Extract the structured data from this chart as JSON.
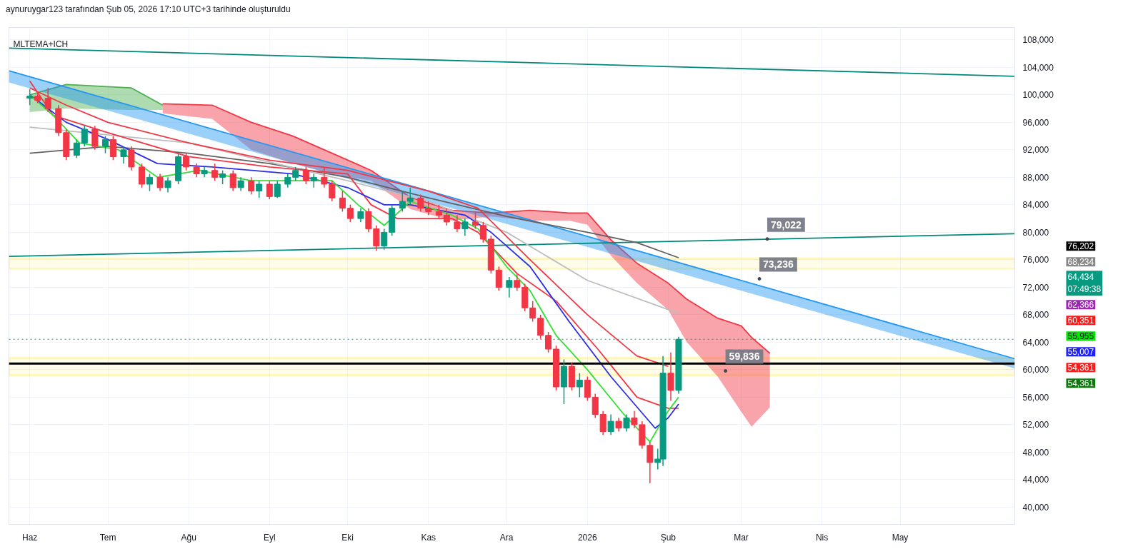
{
  "chart_data": {
    "type": "candlestick",
    "title": "aynuruygar123 tarafından Şub 05, 2026 17:10 UTC+3 tarihinde oluşturuldu",
    "subtitle": "MLTEMA+ICH",
    "x": [
      "2025-06-01",
      "2025-06-04",
      "2025-06-08",
      "2025-06-12",
      "2025-06-15",
      "2025-06-19",
      "2025-06-22",
      "2025-06-26",
      "2025-06-30",
      "2025-07-03",
      "2025-07-07",
      "2025-07-10",
      "2025-07-14",
      "2025-07-17",
      "2025-07-21",
      "2025-07-24",
      "2025-07-28",
      "2025-07-31",
      "2025-08-04",
      "2025-08-07",
      "2025-08-11",
      "2025-08-14",
      "2025-08-18",
      "2025-08-21",
      "2025-08-25",
      "2025-08-28",
      "2025-09-01",
      "2025-09-04",
      "2025-09-08",
      "2025-09-11",
      "2025-09-15",
      "2025-09-18",
      "2025-09-22",
      "2025-09-25",
      "2025-09-29",
      "2025-10-02",
      "2025-10-06",
      "2025-10-09",
      "2025-10-12",
      "2025-10-15",
      "2025-10-18",
      "2025-10-22",
      "2025-10-25",
      "2025-10-29",
      "2025-11-01",
      "2025-11-05",
      "2025-11-08",
      "2025-11-12",
      "2025-11-15",
      "2025-11-19",
      "2025-11-22",
      "2025-11-25",
      "2025-11-28",
      "2025-12-02",
      "2025-12-05",
      "2025-12-08",
      "2025-12-11",
      "2025-12-14",
      "2025-12-17",
      "2025-12-20",
      "2025-12-23",
      "2025-12-26",
      "2025-12-29",
      "2026-01-01",
      "2026-01-04",
      "2026-01-07",
      "2026-01-10",
      "2026-01-13",
      "2026-01-16",
      "2026-01-19",
      "2026-01-22",
      "2026-01-25",
      "2026-01-28",
      "2026-01-30",
      "2026-02-02",
      "2026-02-05"
    ],
    "ohlc": [
      [
        99500,
        100800,
        98500,
        99800
      ],
      [
        99800,
        100500,
        98800,
        99200
      ],
      [
        99500,
        101000,
        97500,
        98000
      ],
      [
        98000,
        98500,
        94000,
        94500
      ],
      [
        94500,
        95000,
        90500,
        91000
      ],
      [
        91200,
        93500,
        90800,
        93000
      ],
      [
        93000,
        95500,
        92500,
        95000
      ],
      [
        95000,
        95500,
        92000,
        92500
      ],
      [
        92500,
        94000,
        91500,
        93500
      ],
      [
        93500,
        94000,
        90500,
        91000
      ],
      [
        91000,
        92500,
        90000,
        92000
      ],
      [
        92000,
        92500,
        89000,
        89500
      ],
      [
        89500,
        90000,
        86500,
        87000
      ],
      [
        87000,
        88500,
        86000,
        88000
      ],
      [
        88000,
        88500,
        86000,
        86500
      ],
      [
        86500,
        88000,
        85800,
        87500
      ],
      [
        87500,
        91500,
        87000,
        91000
      ],
      [
        91000,
        91500,
        89000,
        89500
      ],
      [
        89500,
        90000,
        88000,
        88500
      ],
      [
        88500,
        89500,
        88000,
        89000
      ],
      [
        89000,
        90000,
        87500,
        88000
      ],
      [
        88000,
        89000,
        87000,
        88500
      ],
      [
        88500,
        89000,
        86000,
        86500
      ],
      [
        86500,
        88000,
        86000,
        87500
      ],
      [
        87500,
        88000,
        85500,
        86000
      ],
      [
        86000,
        87500,
        85000,
        87000
      ],
      [
        87000,
        87500,
        84800,
        85200
      ],
      [
        85200,
        87500,
        85000,
        87000
      ],
      [
        87000,
        88500,
        86500,
        88000
      ],
      [
        88000,
        89500,
        87500,
        89000
      ],
      [
        89000,
        89500,
        87000,
        87500
      ],
      [
        87500,
        88500,
        86500,
        88000
      ],
      [
        88000,
        89500,
        86500,
        87000
      ],
      [
        87000,
        87500,
        84500,
        85000
      ],
      [
        85000,
        86000,
        83000,
        83500
      ],
      [
        83500,
        84000,
        81500,
        82000
      ],
      [
        82000,
        83500,
        81500,
        83000
      ],
      [
        83000,
        83500,
        80000,
        80500
      ],
      [
        80500,
        81000,
        77300,
        78000
      ],
      [
        78000,
        80500,
        77500,
        80000
      ],
      [
        80000,
        84000,
        79500,
        83500
      ],
      [
        83500,
        86000,
        83000,
        84500
      ],
      [
        84500,
        86500,
        84000,
        85000
      ],
      [
        85000,
        85500,
        83000,
        83500
      ],
      [
        83500,
        84500,
        82500,
        83000
      ],
      [
        83000,
        84000,
        82000,
        82500
      ],
      [
        82500,
        83500,
        81000,
        81500
      ],
      [
        81500,
        82500,
        80000,
        80500
      ],
      [
        80500,
        82000,
        79500,
        81500
      ],
      [
        81500,
        83000,
        80500,
        81000
      ],
      [
        81000,
        81500,
        78500,
        79000
      ],
      [
        79000,
        79500,
        74000,
        74500
      ],
      [
        74500,
        75000,
        71500,
        72000
      ],
      [
        72000,
        73500,
        70500,
        73000
      ],
      [
        73000,
        74000,
        71500,
        72000
      ],
      [
        72000,
        72500,
        68500,
        69000
      ],
      [
        69000,
        70000,
        67000,
        67500
      ],
      [
        67500,
        68000,
        64500,
        65000
      ],
      [
        65000,
        65500,
        62500,
        63000
      ],
      [
        63000,
        63500,
        57000,
        57500
      ],
      [
        57500,
        61500,
        55000,
        60500
      ],
      [
        60500,
        61000,
        57000,
        57500
      ],
      [
        57500,
        59500,
        56000,
        58500
      ],
      [
        58500,
        59000,
        55500,
        56000
      ],
      [
        56000,
        56500,
        53000,
        53500
      ],
      [
        53500,
        54000,
        50500,
        51000
      ],
      [
        51000,
        53500,
        50500,
        52500
      ],
      [
        52500,
        53000,
        51000,
        51500
      ],
      [
        51500,
        53500,
        51000,
        53000
      ],
      [
        53000,
        54000,
        51500,
        52000
      ],
      [
        52000,
        52500,
        48500,
        49000
      ],
      [
        49000,
        49500,
        43500,
        46500
      ],
      [
        46500,
        48500,
        45500,
        47000
      ],
      [
        47000,
        62000,
        46000,
        59500
      ],
      [
        59500,
        62500,
        55500,
        57000
      ],
      [
        57000,
        64800,
        56500,
        64434
      ]
    ],
    "series": [
      {
        "type": "line",
        "color": "#4caf50",
        "x": [
          "2025-06-01",
          "2025-06-15",
          "2025-07-10",
          "2025-07-22"
        ],
        "values": [
          100000,
          101500,
          101000,
          98500
        ],
        "lower": [
          97500,
          98000,
          97800,
          97800
        ],
        "upper": [
          100000,
          101500,
          101000,
          98500
        ]
      },
      {
        "type": "line",
        "color": "#f23645",
        "x": [
          "2025-07-22",
          "2025-08-10",
          "2025-08-25",
          "2025-09-10",
          "2025-09-25",
          "2025-10-10",
          "2025-10-25",
          "2025-11-10",
          "2025-11-25",
          "2025-12-10",
          "2025-12-25",
          "2026-01-01",
          "2026-01-10",
          "2026-01-20",
          "2026-02-01",
          "2026-02-08",
          "2026-02-20",
          "2026-03-01",
          "2026-03-05",
          "2026-03-12"
        ],
        "values": [
          98700,
          98500,
          96000,
          94000,
          91500,
          89000,
          85100,
          83200,
          82800,
          83200,
          82800,
          82800,
          78900,
          75500,
          72600,
          70300,
          67500,
          66400,
          64700,
          62400
        ],
        "lower": [
          97300,
          96500,
          92000,
          90000,
          88500,
          87500,
          83400,
          81700,
          82300,
          81700,
          81700,
          81100,
          76600,
          72600,
          68700,
          64100,
          59000,
          53900,
          51700,
          54500
        ],
        "upper": [
          98700,
          98500,
          96000,
          94000,
          91500,
          89000,
          85100,
          83200,
          82800,
          83200,
          82800,
          82800,
          78900,
          75500,
          72600,
          70300,
          67500,
          66400,
          64700,
          62400
        ]
      },
      {
        "type": "line",
        "color": "#2196f3",
        "x": [
          "2025-05-24",
          "2026-06-14"
        ],
        "values": [
          103500,
          61600
        ],
        "lower": [
          101800,
          60200
        ],
        "upper": [
          103500,
          61600
        ]
      },
      {
        "type": "line",
        "color": "#00897b",
        "x": [
          "2025-05-24",
          "2026-06-14"
        ],
        "values": [
          106800,
          102700
        ]
      },
      {
        "type": "line",
        "color": "#00897b",
        "x": [
          "2025-05-24",
          "2026-06-14"
        ],
        "values": [
          76500,
          79800
        ]
      },
      {
        "type": "line",
        "color": "#616161",
        "x": [
          "2025-06-01",
          "2025-07-01",
          "2025-08-01",
          "2025-09-01",
          "2025-10-01",
          "2025-11-01",
          "2025-12-01",
          "2026-01-01",
          "2026-01-20",
          "2026-02-05"
        ],
        "values": [
          91500,
          92500,
          91500,
          90000,
          88000,
          85000,
          82300,
          80000,
          78500,
          76300
        ]
      },
      {
        "type": "line",
        "color": "#bdbdbd",
        "x": [
          "2025-06-01",
          "2025-08-01",
          "2025-10-01",
          "2025-11-01",
          "2025-12-01",
          "2026-01-01",
          "2026-02-05"
        ],
        "values": [
          95300,
          93000,
          87500,
          84500,
          80000,
          73000,
          68200
        ]
      },
      {
        "type": "line",
        "color": "#f23645",
        "x": [
          "2025-06-01",
          "2025-06-15",
          "2025-07-01",
          "2025-08-01",
          "2025-09-01",
          "2025-10-01",
          "2025-11-01",
          "2025-11-20",
          "2025-12-10",
          "2026-01-01",
          "2026-01-20",
          "2026-02-01"
        ],
        "values": [
          101000,
          98500,
          96000,
          93000,
          90500,
          89000,
          86000,
          83500,
          76000,
          68000,
          62000,
          60500
        ]
      },
      {
        "type": "line",
        "color": "#f23645",
        "x": [
          "2025-06-01",
          "2025-06-10",
          "2025-07-01",
          "2025-08-01",
          "2025-09-01",
          "2025-10-01",
          "2025-10-10",
          "2025-10-20",
          "2025-11-10",
          "2025-11-20",
          "2025-12-05",
          "2025-12-20",
          "2026-01-05",
          "2026-01-20",
          "2026-02-01",
          "2026-02-05"
        ],
        "values": [
          102000,
          97000,
          94500,
          91000,
          89500,
          88500,
          84000,
          82000,
          82000,
          80000,
          74000,
          70000,
          63000,
          56000,
          54400,
          54400
        ]
      },
      {
        "type": "line",
        "color": "#2a2ee8",
        "x": [
          "2025-06-01",
          "2025-06-15",
          "2025-07-01",
          "2025-07-20",
          "2025-08-10",
          "2025-09-10",
          "2025-10-01",
          "2025-10-15",
          "2025-10-25",
          "2025-11-15",
          "2025-11-25",
          "2025-12-10",
          "2025-12-25",
          "2026-01-10",
          "2026-01-27",
          "2026-02-01",
          "2026-02-05"
        ],
        "values": [
          100000,
          96000,
          93500,
          90000,
          89500,
          88500,
          86500,
          84000,
          84000,
          82500,
          80000,
          75000,
          67000,
          59000,
          51500,
          53000,
          55000
        ]
      },
      {
        "type": "line",
        "color": "#33e033",
        "x": [
          "2025-06-01",
          "2025-06-10",
          "2025-06-20",
          "2025-07-05",
          "2025-07-20",
          "2025-08-05",
          "2025-08-25",
          "2025-09-15",
          "2025-09-25",
          "2025-10-05",
          "2025-10-15",
          "2025-10-25",
          "2025-11-10",
          "2025-11-20",
          "2025-12-01",
          "2025-12-10",
          "2025-12-20",
          "2026-01-01",
          "2026-01-15",
          "2026-01-25",
          "2026-02-01",
          "2026-02-05"
        ],
        "values": [
          100000,
          97000,
          93000,
          92000,
          88000,
          89000,
          87500,
          87500,
          87500,
          84000,
          81000,
          84500,
          82500,
          80500,
          75000,
          71500,
          65000,
          60000,
          53500,
          49500,
          54000,
          56000
        ]
      }
    ],
    "bands": [
      {
        "axis": "y",
        "from": 74700,
        "to": 76202,
        "color": "#fbe94a"
      },
      {
        "axis": "y",
        "from": 59200,
        "to": 61700,
        "color": "#fbe94a"
      }
    ],
    "ref_lines": [
      {
        "axis": "y",
        "value": 60900,
        "color": "#000000"
      },
      {
        "axis": "y",
        "value": 64434,
        "color": "#089981",
        "line_style": "dotted"
      }
    ],
    "annotations": [
      "76,202",
      "68,234",
      "64,434\n07:49:38",
      "62,366",
      "60,351",
      "55,955",
      "55,007",
      "54,361",
      "54,361",
      {
        "text": "79,022",
        "x": "2026-03-11",
        "y": 79022
      },
      {
        "text": "73,236",
        "x": "2026-03-08",
        "y": 73236
      },
      {
        "text": "59,836",
        "x": "2026-02-23",
        "y": 59836
      }
    ],
    "xlim": [
      "2025-05-24",
      "2026-06-14"
    ],
    "xticks": [
      {
        "value": "2025-06-01",
        "label": "Haz"
      },
      {
        "value": "2025-07-01",
        "label": "Tem"
      },
      {
        "value": "2025-08-01",
        "label": "Ağu"
      },
      {
        "value": "2025-09-01",
        "label": "Eyl"
      },
      {
        "value": "2025-10-01",
        "label": "Eki"
      },
      {
        "value": "2025-11-01",
        "label": "Kas"
      },
      {
        "value": "2025-12-01",
        "label": "Ara"
      },
      {
        "value": "2026-01-01",
        "label": "2026"
      },
      {
        "value": "2026-02-01",
        "label": "Şub"
      },
      {
        "value": "2026-03-01",
        "label": "Mar"
      },
      {
        "value": "2026-04-01",
        "label": "Nis"
      },
      {
        "value": "2026-05-01",
        "label": "May"
      }
    ],
    "ylim": [
      37500,
      109800
    ],
    "yticks": [
      {
        "value": 40000,
        "label": "40,000"
      },
      {
        "value": 44000,
        "label": "44,000"
      },
      {
        "value": 48000,
        "label": "48,000"
      },
      {
        "value": 52000,
        "label": "52,000"
      },
      {
        "value": 56000,
        "label": "56,000"
      },
      {
        "value": 60000,
        "label": "60,000"
      },
      {
        "value": 64000,
        "label": "64,000"
      },
      {
        "value": 68000,
        "label": "68,000"
      },
      {
        "value": 72000,
        "label": "72,000"
      },
      {
        "value": 76000,
        "label": "76,000"
      },
      {
        "value": 80000,
        "label": "80,000"
      },
      {
        "value": 84000,
        "label": "84,000"
      },
      {
        "value": 88000,
        "label": "88,000"
      },
      {
        "value": 92000,
        "label": "92,000"
      },
      {
        "value": 96000,
        "label": "96,000"
      },
      {
        "value": 100000,
        "label": "100,000"
      },
      {
        "value": 104000,
        "label": "104,000"
      },
      {
        "value": 108000,
        "label": "108,000"
      }
    ],
    "grid": true
  }
}
